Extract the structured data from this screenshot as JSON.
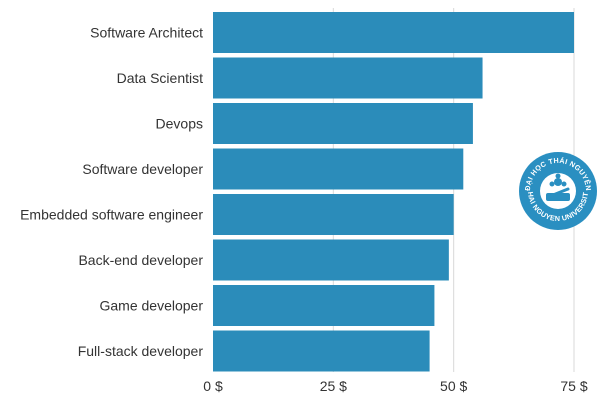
{
  "chart_data": {
    "type": "bar",
    "orientation": "horizontal",
    "categories": [
      "Software Architect",
      "Data Scientist",
      "Devops",
      "Software developer",
      "Embedded software engineer",
      "Back-end developer",
      "Game developer",
      "Full-stack developer"
    ],
    "values": [
      75,
      56,
      54,
      52,
      50,
      49,
      46,
      45
    ],
    "xlim": [
      0,
      75
    ],
    "x_ticks": [
      0,
      25,
      50,
      75
    ],
    "x_tick_labels": [
      "0 $",
      "25 $",
      "50 $",
      "75 $"
    ],
    "title": "",
    "xlabel": "",
    "ylabel": "",
    "grid": "vertical",
    "legend": "none",
    "bar_color": "#2b8cba"
  },
  "watermark": {
    "text_top": "ĐẠI HỌC THÁI NGUYÊN",
    "text_bottom": "THAI NGUYEN UNIVERSITY",
    "color": "#2a8fc1"
  }
}
